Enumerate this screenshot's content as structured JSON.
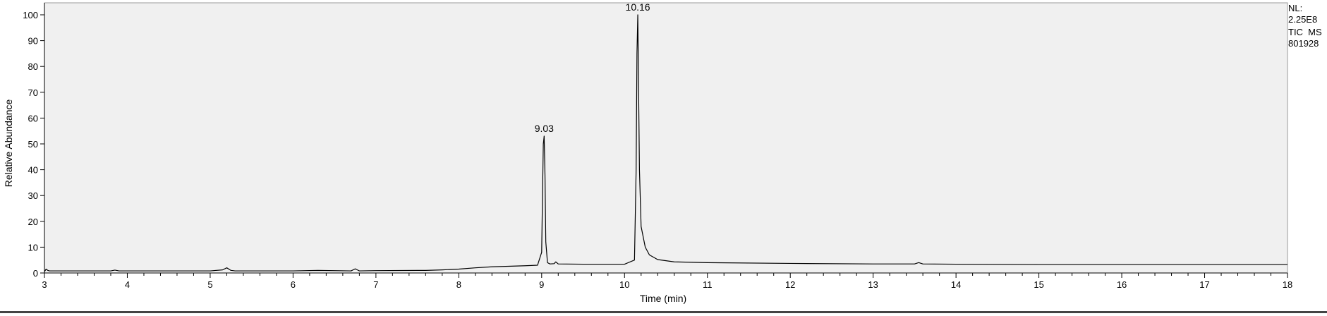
{
  "chart_data": {
    "type": "line",
    "xlabel": "Time (min)",
    "ylabel": "Relative Abundance",
    "xlim": [
      3,
      18
    ],
    "ylim": [
      0,
      100
    ],
    "x_ticks": [
      3,
      4,
      5,
      6,
      7,
      8,
      9,
      10,
      11,
      12,
      13,
      14,
      15,
      16,
      17,
      18
    ],
    "y_ticks": [
      0,
      10,
      20,
      30,
      40,
      50,
      60,
      70,
      80,
      90,
      100
    ],
    "grid": false,
    "background": "#f0f0f0",
    "line_color": "#000000",
    "peaks": [
      {
        "label": "9.03",
        "x": 9.03,
        "y": 53
      },
      {
        "label": "10.16",
        "x": 10.16,
        "y": 100
      }
    ],
    "series": [
      {
        "x": [
          3.0,
          3.02,
          3.04,
          3.06,
          3.1,
          3.5,
          3.8,
          3.85,
          3.9,
          4.5,
          5.0,
          5.15,
          5.2,
          5.25,
          5.3,
          5.5,
          6.0,
          6.3,
          6.7,
          6.75,
          6.8,
          7.0,
          7.5,
          7.6,
          7.8,
          8.0,
          8.2,
          8.4,
          8.6,
          8.8,
          8.95,
          9.0,
          9.01,
          9.02,
          9.03,
          9.04,
          9.05,
          9.07,
          9.1,
          9.15,
          9.17,
          9.2,
          9.5,
          10.0,
          10.12,
          10.14,
          10.15,
          10.16,
          10.17,
          10.18,
          10.2,
          10.25,
          10.3,
          10.4,
          10.6,
          11.0,
          12.0,
          13.0,
          13.5,
          13.55,
          13.6,
          14.0,
          15.0,
          16.0,
          17.0,
          18.0
        ],
        "y": [
          0.5,
          1.5,
          1.0,
          0.8,
          0.8,
          0.8,
          0.8,
          1.1,
          0.8,
          0.8,
          0.8,
          1.2,
          2.0,
          1.0,
          0.8,
          0.8,
          0.8,
          1.0,
          0.8,
          1.6,
          0.8,
          0.9,
          1.0,
          1.0,
          1.2,
          1.5,
          2.0,
          2.4,
          2.6,
          2.8,
          3.0,
          8.0,
          30.0,
          50.0,
          53.0,
          38.0,
          12.0,
          4.0,
          3.5,
          3.6,
          4.3,
          3.5,
          3.4,
          3.4,
          5.0,
          40.0,
          85.0,
          100.0,
          70.0,
          40.0,
          18.0,
          10.0,
          7.0,
          5.2,
          4.3,
          4.0,
          3.7,
          3.5,
          3.5,
          4.0,
          3.5,
          3.4,
          3.3,
          3.3,
          3.3,
          3.3
        ]
      }
    ]
  },
  "info": {
    "nl_label": "NL:",
    "nl_value": "2.25E8",
    "trace": "TIC  MS",
    "sample": "801928"
  }
}
